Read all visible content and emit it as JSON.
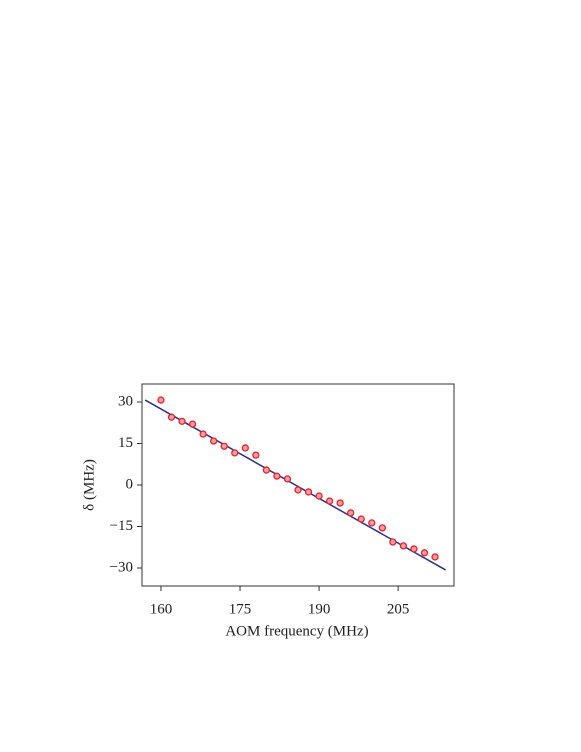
{
  "chart_data": {
    "type": "scatter",
    "x_label": "AOM frequency (MHz)",
    "y_label": "δ (MHz)",
    "xlim": [
      156.4,
      215.6
    ],
    "ylim": [
      -36.5,
      36.5
    ],
    "xticks": [
      160,
      175,
      190,
      205
    ],
    "yticks": [
      {
        "value": -30,
        "label": "−30"
      },
      {
        "value": -15,
        "label": "−15"
      },
      0,
      15,
      30
    ],
    "series": [
      {
        "color": "#e8202a",
        "x": [
          160,
          162,
          164,
          166,
          168,
          170,
          172,
          174,
          176,
          178,
          180,
          182,
          184,
          186,
          188,
          190,
          192,
          194,
          196,
          198,
          200,
          202,
          204,
          206,
          208,
          210,
          212
        ],
        "values": [
          30.7,
          24.5,
          23,
          22,
          18.4,
          15.9,
          14,
          11.6,
          13.4,
          10.8,
          5.4,
          3.2,
          2.2,
          -1.8,
          -2.5,
          -4,
          -5.8,
          -6.5,
          -10.1,
          -12.3,
          -13.7,
          -15.5,
          -20.6,
          -22,
          -23.1,
          -24.5,
          -26
        ]
      }
    ],
    "fit": {
      "color": "#2b2f8f",
      "x": [
        157,
        214
      ],
      "values": [
        30.7,
        -30.7
      ]
    }
  }
}
